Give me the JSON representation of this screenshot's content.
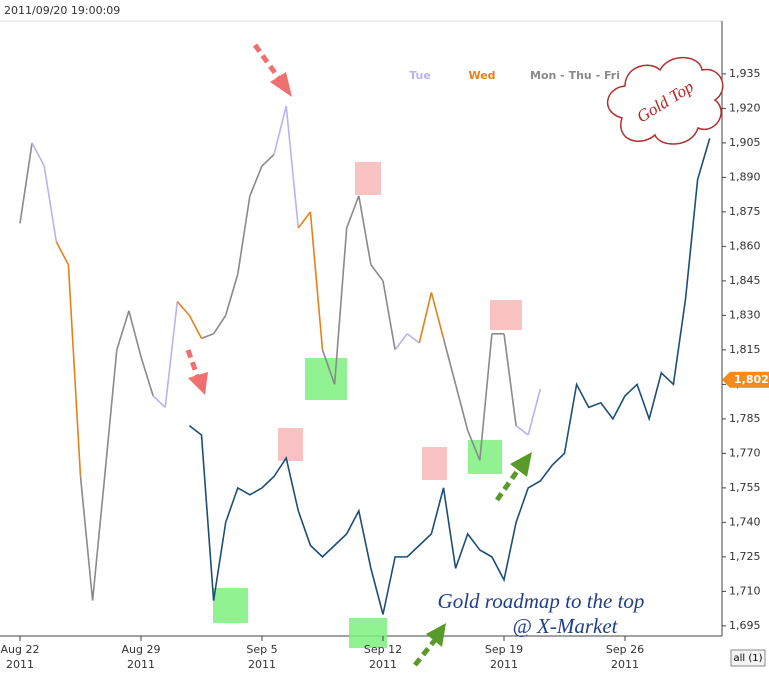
{
  "header": {
    "timestamp": "2011/09/20 19:00:09"
  },
  "chart_data": {
    "type": "line",
    "categories": [
      "Aug 22",
      null,
      null,
      null,
      null,
      null,
      null,
      null,
      null,
      null,
      "Aug 29",
      null,
      null,
      null,
      null,
      null,
      null,
      null,
      null,
      null,
      "Sep 5",
      null,
      null,
      null,
      null,
      null,
      null,
      null,
      null,
      null,
      "Sep 12",
      null,
      null,
      null,
      null,
      null,
      null,
      null,
      null,
      null,
      "Sep 19",
      null,
      null,
      null,
      null,
      null,
      null,
      null,
      null,
      null,
      "Sep 26",
      null,
      null,
      null,
      null,
      null,
      null,
      null
    ],
    "category_years": [
      "2011",
      null,
      null,
      null,
      null,
      null,
      null,
      null,
      null,
      null,
      "2011",
      null,
      null,
      null,
      null,
      null,
      null,
      null,
      null,
      null,
      "2011",
      null,
      null,
      null,
      null,
      null,
      null,
      null,
      null,
      null,
      "2011",
      null,
      null,
      null,
      null,
      null,
      null,
      null,
      null,
      null,
      "2011",
      null,
      null,
      null,
      null,
      null,
      null,
      null,
      null,
      null,
      "2011",
      null,
      null,
      null,
      null,
      null,
      null,
      null
    ],
    "series": [
      {
        "name": "Tue",
        "color": "#b9b3ee",
        "values": [
          null,
          null,
          1895,
          1862,
          null,
          null,
          null,
          null,
          null,
          null,
          null,
          null,
          1790,
          1836,
          null,
          null,
          null,
          null,
          null,
          null,
          null,
          null,
          1921,
          1868,
          null,
          null,
          null,
          null,
          null,
          null,
          null,
          null,
          1822,
          1818,
          null,
          null,
          null,
          null,
          null,
          null,
          null,
          null,
          1778,
          1798,
          null,
          null,
          null,
          null,
          null,
          null,
          null,
          null,
          null,
          null,
          null,
          null,
          null,
          null
        ]
      },
      {
        "name": "Wed",
        "color": "#e8801a",
        "values": [
          null,
          null,
          null,
          null,
          1852,
          1760,
          null,
          null,
          null,
          null,
          null,
          null,
          null,
          null,
          1830,
          1820,
          null,
          null,
          null,
          null,
          null,
          null,
          null,
          null,
          1875,
          1815,
          null,
          null,
          null,
          null,
          null,
          null,
          null,
          null,
          1840,
          1820,
          null,
          null,
          null,
          null,
          null,
          null,
          null,
          null,
          null,
          null,
          null,
          null,
          null,
          null,
          null,
          null,
          null,
          null,
          null,
          null,
          null,
          null
        ]
      },
      {
        "name": "Mon - Thu - Fri",
        "color": "#8a8a8a",
        "values": [
          1870,
          1905,
          null,
          null,
          null,
          null,
          1706,
          1760,
          1815,
          1832,
          1812,
          1795,
          null,
          null,
          null,
          null,
          1822,
          1830,
          1848,
          1882,
          1895,
          1900,
          null,
          null,
          null,
          null,
          1800,
          1868,
          1882,
          1852,
          1845,
          1815,
          null,
          null,
          null,
          null,
          1800,
          1780,
          1767,
          1822,
          1822,
          1782,
          null,
          null,
          null,
          null,
          null,
          null,
          null,
          null,
          null,
          null,
          null,
          null,
          null,
          null,
          null,
          null
        ]
      },
      {
        "color": "#1d4e76",
        "values": [
          null,
          null,
          null,
          null,
          null,
          null,
          null,
          null,
          null,
          null,
          null,
          null,
          null,
          null,
          1782,
          1778,
          1706,
          1740,
          1755,
          1752,
          1755,
          1760,
          1768,
          1745,
          1730,
          1725,
          1730,
          1735,
          1745,
          1720,
          1700,
          1725,
          1725,
          1730,
          1735,
          1755,
          1720,
          1735,
          1728,
          1725,
          1715,
          1740,
          1755,
          1758,
          1765,
          1770,
          1800,
          1790,
          1792,
          1785,
          1795,
          1800,
          1785,
          1805,
          1800,
          1837,
          1889,
          1907
        ]
      }
    ],
    "ylim": [
      1690.6,
      1958
    ],
    "yticks": [
      {
        "value": 1695,
        "label": "1,695"
      },
      {
        "value": 1710,
        "label": "1,710"
      },
      {
        "value": 1725,
        "label": "1,725"
      },
      {
        "value": 1740,
        "label": "1,740"
      },
      {
        "value": 1755,
        "label": "1,755"
      },
      {
        "value": 1770,
        "label": "1,770"
      },
      {
        "value": 1785,
        "label": "1,785"
      },
      {
        "value": 1800,
        "label": "1,800"
      },
      {
        "value": 1815,
        "label": "1,815"
      },
      {
        "value": 1830,
        "label": "1,830"
      },
      {
        "value": 1845,
        "label": "1,845"
      },
      {
        "value": 1860,
        "label": "1,860"
      },
      {
        "value": 1875,
        "label": "1,875"
      },
      {
        "value": 1890,
        "label": "1,890"
      },
      {
        "value": 1905,
        "label": "1,905"
      },
      {
        "value": 1920,
        "label": "1,920"
      },
      {
        "value": 1935,
        "label": "1,935"
      }
    ],
    "last_price": {
      "value": 1802,
      "label": "1,802.0"
    },
    "grid": false,
    "annotations": [
      "Gold Top",
      "Gold roadmap to the top",
      "@ X-Market"
    ],
    "range_button": "all (1)"
  }
}
